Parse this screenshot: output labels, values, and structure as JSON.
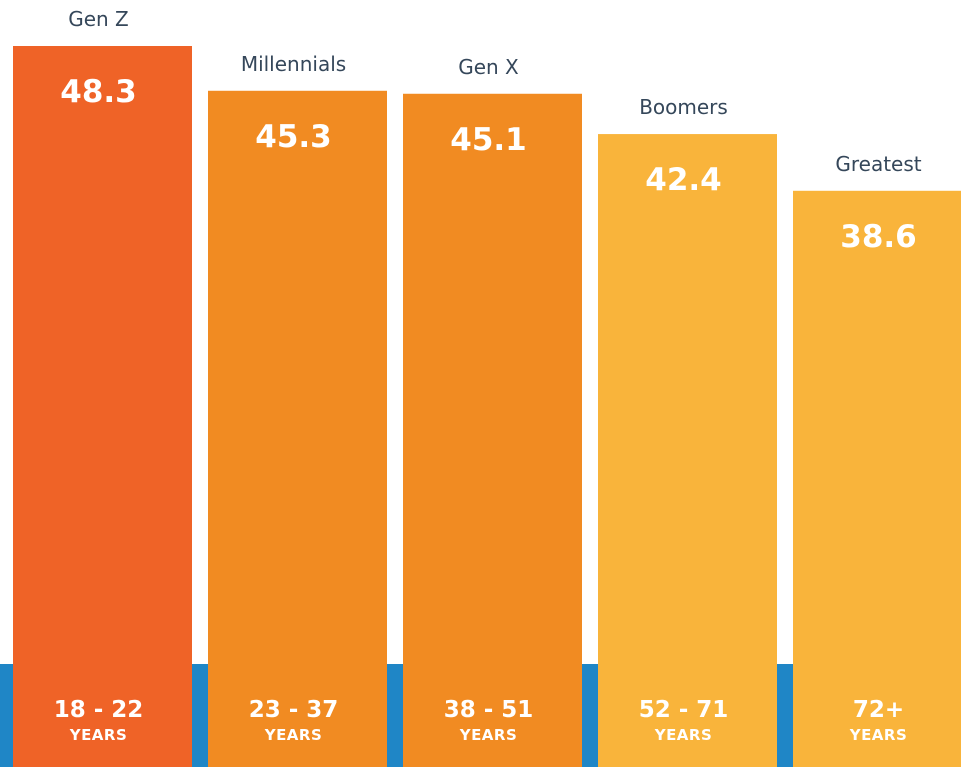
{
  "chart_data": {
    "type": "bar",
    "categories": [
      "Gen Z",
      "Millennials",
      "Gen X",
      "Boomers",
      "Greatest"
    ],
    "values": [
      48.3,
      45.3,
      45.1,
      42.4,
      38.6
    ],
    "age_ranges": [
      "18 - 22",
      "23 - 37",
      "38 - 51",
      "52 - 71",
      "72+"
    ],
    "age_unit": "YEARS",
    "ylim": [
      0,
      48.3
    ],
    "colors": [
      "#ef6327",
      "#f18b22",
      "#f18b22",
      "#f9b43b",
      "#f9b43b"
    ],
    "baseline_color": "#1f86c6",
    "grid": false
  }
}
